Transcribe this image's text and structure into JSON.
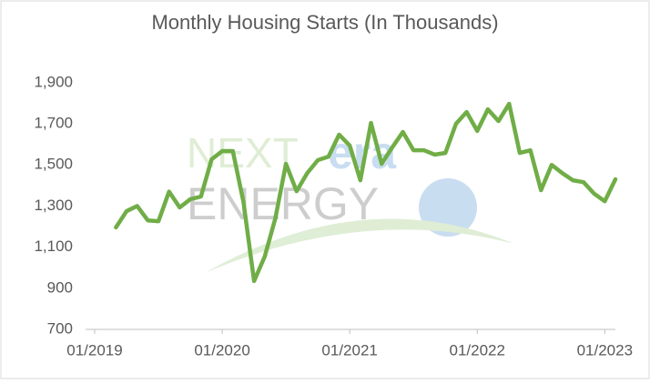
{
  "chart_data": {
    "type": "line",
    "title": "Monthly Housing Starts (In Thousands)",
    "watermark": {
      "part1": "NEXT",
      "part2": "era",
      "part3": "ENERGY"
    },
    "x": [
      "03/2019",
      "04/2019",
      "05/2019",
      "06/2019",
      "07/2019",
      "08/2019",
      "09/2019",
      "10/2019",
      "11/2019",
      "12/2019",
      "01/2020",
      "02/2020",
      "03/2020",
      "04/2020",
      "05/2020",
      "06/2020",
      "07/2020",
      "08/2020",
      "09/2020",
      "10/2020",
      "11/2020",
      "12/2020",
      "01/2021",
      "02/2021",
      "03/2021",
      "04/2021",
      "05/2021",
      "06/2021",
      "07/2021",
      "08/2021",
      "09/2021",
      "10/2021",
      "11/2021",
      "12/2021",
      "01/2022",
      "02/2022",
      "03/2022",
      "04/2022",
      "05/2022",
      "06/2022",
      "07/2022",
      "08/2022",
      "09/2022",
      "10/2022",
      "11/2022",
      "12/2022",
      "01/2023",
      "02/2023"
    ],
    "series": [
      {
        "color": "#70ad47",
        "values": [
          1196,
          1275,
          1300,
          1230,
          1226,
          1370,
          1293,
          1333,
          1346,
          1527,
          1567,
          1567,
          1320,
          935,
          1054,
          1240,
          1505,
          1372,
          1460,
          1523,
          1540,
          1647,
          1594,
          1425,
          1704,
          1505,
          1585,
          1660,
          1571,
          1571,
          1550,
          1558,
          1700,
          1757,
          1665,
          1770,
          1713,
          1797,
          1558,
          1571,
          1377,
          1500,
          1460,
          1425,
          1416,
          1360,
          1323,
          1430
        ]
      }
    ],
    "xlim": [
      "01/2019",
      "02/2023"
    ],
    "xticks": [
      "01/2019",
      "01/2020",
      "01/2021",
      "01/2022",
      "01/2023"
    ],
    "ylim": [
      700,
      2100
    ],
    "yticks": [
      700,
      {
        "value": 900,
        "label": "900"
      },
      {
        "value": 1100,
        "label": "1,100"
      },
      {
        "value": 1300,
        "label": "1,300"
      },
      {
        "value": 1500,
        "label": "1,500"
      },
      {
        "value": 1700,
        "label": "1,700"
      },
      {
        "value": 1900,
        "label": "1,900"
      }
    ],
    "grid": false
  }
}
